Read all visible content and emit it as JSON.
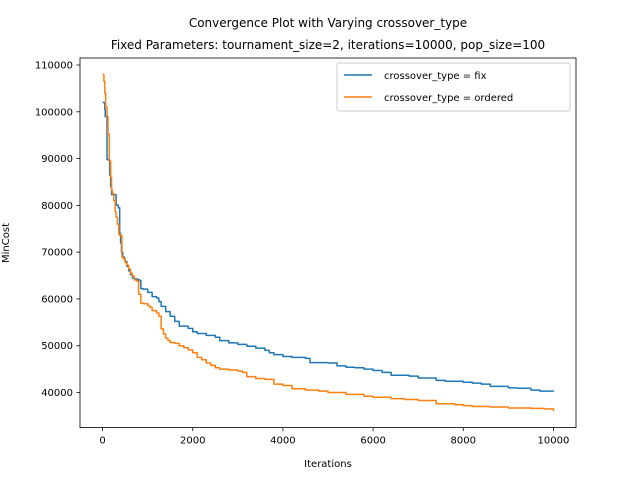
{
  "chart_data": {
    "type": "line",
    "title": "Convergence Plot with Varying crossover_type",
    "subtitle": "Fixed Parameters: tournament_size=2, iterations=10000, pop_size=100",
    "xlabel": "Iterations",
    "ylabel": "MinCost",
    "xlim": [
      -500,
      10500
    ],
    "ylim": [
      32500,
      111500
    ],
    "xticks": [
      0,
      2000,
      4000,
      6000,
      8000,
      10000
    ],
    "yticks": [
      40000,
      50000,
      60000,
      70000,
      80000,
      90000,
      100000,
      110000
    ],
    "grid": false,
    "legend_position": "upper right",
    "series": [
      {
        "name": "crossover_type = fix",
        "color": "#1f77b4",
        "x": [
          0,
          50,
          60,
          100,
          120,
          140,
          160,
          180,
          200,
          220,
          250,
          300,
          320,
          350,
          380,
          400,
          420,
          450,
          480,
          500,
          540,
          580,
          620,
          660,
          700,
          750,
          800,
          850,
          900,
          1000,
          1100,
          1200,
          1250,
          1300,
          1400,
          1500,
          1600,
          1700,
          1900,
          2000,
          2100,
          2300,
          2500,
          2600,
          2800,
          3000,
          3200,
          3400,
          3600,
          3700,
          3800,
          4000,
          4200,
          4500,
          4600,
          5000,
          5200,
          5400,
          5600,
          5800,
          6000,
          6200,
          6400,
          6800,
          7000,
          7400,
          7600,
          8000,
          8200,
          8400,
          8600,
          9000,
          9200,
          9500,
          9700,
          10000
        ],
        "y": [
          102000,
          100500,
          99000,
          89800,
          89700,
          89700,
          86500,
          84000,
          82300,
          82300,
          82300,
          80200,
          80000,
          79500,
          74000,
          72000,
          70000,
          69000,
          68700,
          68000,
          67000,
          66000,
          65200,
          64500,
          64300,
          64200,
          64000,
          62200,
          62100,
          61400,
          60500,
          60200,
          59400,
          58400,
          57300,
          56300,
          55200,
          54200,
          53700,
          53000,
          52600,
          52200,
          51800,
          51100,
          50600,
          50300,
          49900,
          49500,
          49000,
          48500,
          48100,
          47700,
          47500,
          47300,
          46400,
          46300,
          45700,
          45400,
          45300,
          45000,
          44700,
          44300,
          43700,
          43500,
          43100,
          42600,
          42400,
          42200,
          42000,
          41800,
          41300,
          41000,
          40900,
          40500,
          40300,
          40200
        ]
      },
      {
        "name": "crossover_type = ordered",
        "color": "#ff7f0e",
        "x": [
          0,
          30,
          50,
          70,
          100,
          120,
          150,
          180,
          200,
          220,
          250,
          280,
          300,
          330,
          360,
          380,
          400,
          430,
          460,
          500,
          540,
          580,
          620,
          660,
          700,
          750,
          800,
          850,
          900,
          1000,
          1050,
          1100,
          1200,
          1250,
          1300,
          1350,
          1400,
          1450,
          1500,
          1600,
          1700,
          1800,
          1900,
          2000,
          2100,
          2200,
          2300,
          2400,
          2500,
          2600,
          2800,
          3000,
          3100,
          3200,
          3400,
          3600,
          3800,
          4000,
          4200,
          4500,
          4800,
          5000,
          5400,
          5800,
          6000,
          6400,
          6700,
          7000,
          7400,
          7800,
          8000,
          8200,
          8600,
          9000,
          9500,
          9800,
          10000
        ],
        "y": [
          108000,
          106500,
          104000,
          101000,
          99000,
          95200,
          89500,
          86000,
          83200,
          82500,
          81000,
          78700,
          77500,
          76000,
          73800,
          73600,
          73500,
          69000,
          68600,
          67800,
          67200,
          66400,
          65500,
          64900,
          64100,
          63800,
          61000,
          59100,
          59000,
          58600,
          58200,
          57500,
          57000,
          56300,
          53600,
          52500,
          51600,
          51100,
          50700,
          50500,
          50000,
          49600,
          49100,
          48500,
          47500,
          47000,
          46300,
          45800,
          45300,
          45000,
          44800,
          44600,
          44300,
          43400,
          43000,
          42800,
          41800,
          41500,
          40800,
          40500,
          40300,
          40000,
          39600,
          39200,
          39000,
          38700,
          38500,
          38300,
          37600,
          37400,
          37200,
          37000,
          36900,
          36700,
          36600,
          36500,
          36000
        ]
      }
    ]
  }
}
